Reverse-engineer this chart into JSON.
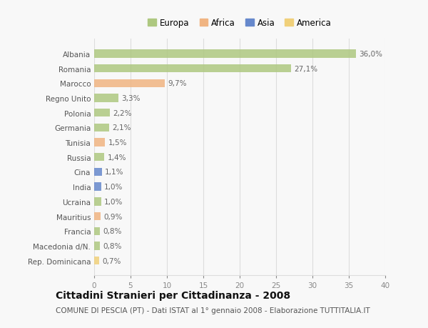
{
  "countries": [
    "Albania",
    "Romania",
    "Marocco",
    "Regno Unito",
    "Polonia",
    "Germania",
    "Tunisia",
    "Russia",
    "Cina",
    "India",
    "Ucraina",
    "Mauritius",
    "Francia",
    "Macedonia d/N.",
    "Rep. Dominicana"
  ],
  "values": [
    36.0,
    27.1,
    9.7,
    3.3,
    2.2,
    2.1,
    1.5,
    1.4,
    1.1,
    1.0,
    1.0,
    0.9,
    0.8,
    0.8,
    0.7
  ],
  "labels": [
    "36,0%",
    "27,1%",
    "9,7%",
    "3,3%",
    "2,2%",
    "2,1%",
    "1,5%",
    "1,4%",
    "1,1%",
    "1,0%",
    "1,0%",
    "0,9%",
    "0,8%",
    "0,8%",
    "0,7%"
  ],
  "continents": [
    "Europa",
    "Europa",
    "Africa",
    "Europa",
    "Europa",
    "Europa",
    "Africa",
    "Europa",
    "Asia",
    "Asia",
    "Europa",
    "Africa",
    "Europa",
    "Europa",
    "America"
  ],
  "continent_colors": {
    "Europa": "#aec880",
    "Africa": "#f0b482",
    "Asia": "#6688cc",
    "America": "#f0d07a"
  },
  "legend_order": [
    "Europa",
    "Africa",
    "Asia",
    "America"
  ],
  "legend_colors": [
    "#aec880",
    "#f0b482",
    "#6688cc",
    "#f0d07a"
  ],
  "xlim": [
    0,
    40
  ],
  "xticks": [
    0,
    5,
    10,
    15,
    20,
    25,
    30,
    35,
    40
  ],
  "title": "Cittadini Stranieri per Cittadinanza - 2008",
  "subtitle": "COMUNE DI PESCIA (PT) - Dati ISTAT al 1° gennaio 2008 - Elaborazione TUTTITALIA.IT",
  "bg_color": "#f8f8f8",
  "bar_height": 0.55,
  "grid_color": "#dddddd",
  "label_fontsize": 7.5,
  "tick_fontsize": 7.5,
  "title_fontsize": 10,
  "subtitle_fontsize": 7.5,
  "legend_fontsize": 8.5
}
